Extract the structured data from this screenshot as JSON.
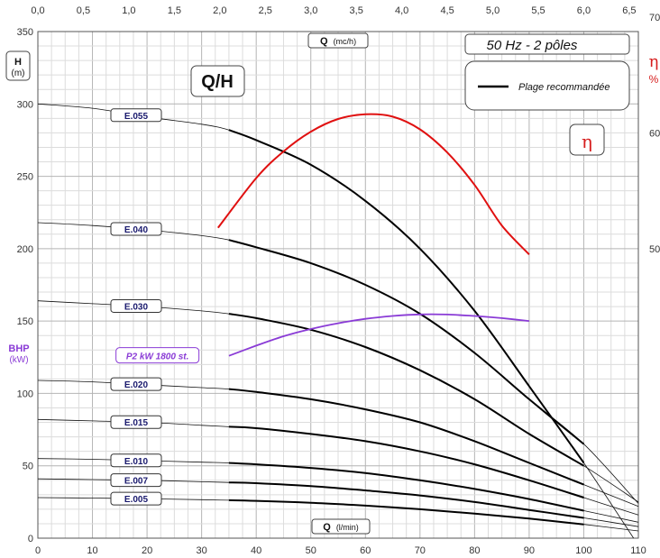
{
  "chart_data": {
    "type": "line",
    "title": "Q/H",
    "subtitle": "50 Hz - 2 pôles",
    "legend": {
      "label": "Plage recommandée",
      "placement": "top-right"
    },
    "eta_box": "η",
    "x_bottom": {
      "label_bold": "Q",
      "label_unit": "(l/min)",
      "range": [
        0,
        110
      ],
      "ticks": [
        "0",
        "10",
        "20",
        "30",
        "40",
        "50",
        "60",
        "70",
        "80",
        "90",
        "100",
        "110"
      ]
    },
    "x_top": {
      "label_bold": "Q",
      "label_unit": "(mc/h)",
      "range": [
        0,
        6.6
      ],
      "ticks": [
        "0,0",
        "0,5",
        "1,0",
        "1,5",
        "2,0",
        "2,5",
        "3,0",
        "3,5",
        "4,0",
        "4,5",
        "5,0",
        "5,5",
        "6,0",
        "6,5"
      ]
    },
    "y_left": {
      "label_h": "H",
      "label_h_unit": "(m)",
      "range": [
        0,
        350
      ],
      "ticks": [
        "0",
        "50",
        "100",
        "150",
        "200",
        "250",
        "300",
        "350"
      ],
      "bhp_label": "BHP",
      "bhp_unit": "(kW)"
    },
    "y_right": {
      "label": "η",
      "unit": "%",
      "ticks": [
        "50",
        "60",
        "70"
      ]
    },
    "grid": true,
    "series": [
      {
        "name": "E.055",
        "x": [
          0,
          10,
          20,
          30,
          35,
          40,
          50,
          60,
          70,
          80,
          90,
          100,
          110
        ],
        "y": [
          300,
          297,
          291,
          286,
          282,
          275,
          258,
          233,
          200,
          157,
          105,
          52,
          -5
        ]
      },
      {
        "name": "E.040",
        "x": [
          0,
          10,
          20,
          30,
          35,
          40,
          50,
          60,
          70,
          80,
          90,
          100,
          110
        ],
        "y": [
          218,
          216,
          213,
          209,
          206,
          201,
          190,
          175,
          155,
          128,
          96,
          65,
          24
        ]
      },
      {
        "name": "E.030",
        "x": [
          0,
          10,
          20,
          30,
          35,
          40,
          50,
          60,
          70,
          80,
          90,
          100,
          110
        ],
        "y": [
          164,
          162,
          160,
          157,
          155,
          152,
          144,
          132,
          116,
          96,
          72,
          50,
          25
        ]
      },
      {
        "name": "E.020",
        "x": [
          0,
          10,
          20,
          30,
          35,
          40,
          50,
          60,
          70,
          80,
          90,
          100,
          110
        ],
        "y": [
          109,
          108,
          106,
          104,
          103,
          101,
          96,
          89,
          80,
          67,
          52,
          37,
          22
        ]
      },
      {
        "name": "E.015",
        "x": [
          0,
          10,
          20,
          30,
          35,
          40,
          50,
          60,
          70,
          80,
          90,
          100,
          110
        ],
        "y": [
          82,
          81,
          80,
          78,
          77,
          76,
          72,
          67,
          60,
          51,
          40,
          28,
          16
        ]
      },
      {
        "name": "E.010",
        "x": [
          0,
          10,
          20,
          30,
          35,
          40,
          50,
          60,
          70,
          80,
          90,
          100,
          110
        ],
        "y": [
          55,
          54.5,
          53.5,
          52.5,
          52,
          51,
          48.5,
          45,
          40,
          34,
          27,
          19,
          11
        ]
      },
      {
        "name": "E.007",
        "x": [
          0,
          10,
          20,
          30,
          35,
          40,
          50,
          60,
          70,
          80,
          90,
          100,
          110
        ],
        "y": [
          41,
          40.5,
          40,
          39,
          38.5,
          38,
          36,
          33,
          29.5,
          25,
          19.5,
          14,
          8
        ]
      },
      {
        "name": "E.005",
        "x": [
          0,
          10,
          20,
          30,
          35,
          40,
          50,
          60,
          70,
          80,
          90,
          100,
          110
        ],
        "y": [
          28,
          27.7,
          27.2,
          26.6,
          26.2,
          25.8,
          24.5,
          22.5,
          20,
          17,
          13.5,
          9.5,
          5
        ]
      }
    ],
    "recommended_range_x": [
      35,
      100
    ],
    "efficiency_curve": {
      "name": "η",
      "unit": "%",
      "x": [
        33,
        40,
        45,
        50,
        55,
        60,
        65,
        70,
        75,
        80,
        85,
        90
      ],
      "y": [
        51.8,
        56.1,
        58.4,
        60.1,
        61.2,
        61.6,
        61.4,
        60.3,
        58.3,
        55.5,
        52.0,
        49.5
      ]
    },
    "power_curve": {
      "name": "P2 kW 1800 st.",
      "x": [
        35,
        40,
        45,
        50,
        55,
        60,
        65,
        70,
        75,
        80,
        85,
        90
      ],
      "y": [
        126,
        133,
        139.5,
        144.5,
        148.5,
        151.5,
        153.5,
        154.6,
        154.5,
        153.5,
        152,
        150
      ]
    }
  }
}
